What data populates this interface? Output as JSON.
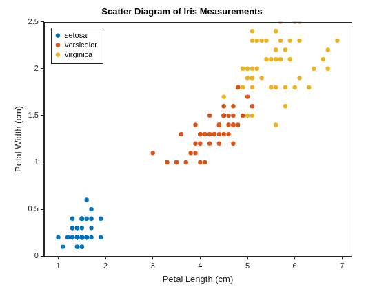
{
  "chart_data": {
    "type": "scatter",
    "title": "Scatter Diagram of Iris Measurements",
    "x_label": "Petal Length (cm)",
    "y_label": "Petal Width (cm)",
    "xlim": [
      0.7,
      7.2
    ],
    "ylim": [
      0,
      2.5
    ],
    "xticks": [
      1,
      2,
      3,
      4,
      5,
      6,
      7
    ],
    "yticks": [
      0,
      0.5,
      1,
      1.5,
      2,
      2.5
    ],
    "grid": false,
    "legend": "upper left",
    "marker": "circle",
    "series": [
      {
        "name": "setosa",
        "color": "#0072bd",
        "x": [
          1.4,
          1.4,
          1.3,
          1.5,
          1.4,
          1.7,
          1.4,
          1.5,
          1.4,
          1.5,
          1.5,
          1.6,
          1.4,
          1.1,
          1.2,
          1.5,
          1.3,
          1.4,
          1.7,
          1.5,
          1.7,
          1.5,
          1.0,
          1.7,
          1.9,
          1.6,
          1.6,
          1.5,
          1.4,
          1.6,
          1.6,
          1.5,
          1.5,
          1.4,
          1.5,
          1.2,
          1.3,
          1.4,
          1.3,
          1.5,
          1.3,
          1.3,
          1.3,
          1.6,
          1.9,
          1.4,
          1.6,
          1.4,
          1.5,
          1.4
        ],
        "values": [
          0.2,
          0.2,
          0.2,
          0.2,
          0.2,
          0.4,
          0.3,
          0.2,
          0.2,
          0.1,
          0.2,
          0.2,
          0.1,
          0.1,
          0.2,
          0.4,
          0.4,
          0.3,
          0.3,
          0.3,
          0.2,
          0.4,
          0.2,
          0.5,
          0.2,
          0.2,
          0.4,
          0.2,
          0.2,
          0.2,
          0.2,
          0.4,
          0.1,
          0.2,
          0.2,
          0.2,
          0.2,
          0.1,
          0.2,
          0.2,
          0.3,
          0.3,
          0.2,
          0.6,
          0.4,
          0.3,
          0.2,
          0.2,
          0.2,
          0.2
        ]
      },
      {
        "name": "versicolor",
        "color": "#d95319",
        "x": [
          4.7,
          4.5,
          4.9,
          4.0,
          4.6,
          4.5,
          4.7,
          3.3,
          4.6,
          3.9,
          3.5,
          4.2,
          4.0,
          4.7,
          3.6,
          4.4,
          4.5,
          4.1,
          4.5,
          3.9,
          4.8,
          4.0,
          4.9,
          4.7,
          4.3,
          4.4,
          4.8,
          5.0,
          4.5,
          3.5,
          3.8,
          3.7,
          3.9,
          5.1,
          4.5,
          4.5,
          4.7,
          4.4,
          4.1,
          4.0,
          4.4,
          4.6,
          4.0,
          3.3,
          4.2,
          4.2,
          4.2,
          4.3,
          3.0,
          4.1
        ],
        "values": [
          1.4,
          1.5,
          1.5,
          1.3,
          1.5,
          1.3,
          1.6,
          1.0,
          1.3,
          1.4,
          1.0,
          1.5,
          1.0,
          1.4,
          1.3,
          1.4,
          1.5,
          1.0,
          1.5,
          1.1,
          1.8,
          1.3,
          1.5,
          1.2,
          1.3,
          1.4,
          1.4,
          1.7,
          1.5,
          1.0,
          1.1,
          1.0,
          1.2,
          1.6,
          1.5,
          1.6,
          1.5,
          1.3,
          1.3,
          1.3,
          1.2,
          1.4,
          1.2,
          1.0,
          1.3,
          1.2,
          1.3,
          1.3,
          1.1,
          1.3
        ]
      },
      {
        "name": "virginica",
        "color": "#edb120",
        "x": [
          6.0,
          5.1,
          5.9,
          5.6,
          5.8,
          6.6,
          4.5,
          6.3,
          5.8,
          6.1,
          5.1,
          5.3,
          5.5,
          5.0,
          5.1,
          5.3,
          5.5,
          6.7,
          6.9,
          5.0,
          5.7,
          4.9,
          6.7,
          4.9,
          5.7,
          6.0,
          4.8,
          4.9,
          5.6,
          5.8,
          6.1,
          6.4,
          5.6,
          5.1,
          5.6,
          6.1,
          5.6,
          5.5,
          4.8,
          5.4,
          5.6,
          5.1,
          5.1,
          5.9,
          5.7,
          5.2,
          5.0,
          5.2,
          5.4,
          5.1
        ],
        "values": [
          2.5,
          1.9,
          2.1,
          1.8,
          2.2,
          2.1,
          1.7,
          1.8,
          1.8,
          2.5,
          2.0,
          1.9,
          2.1,
          2.0,
          2.4,
          2.3,
          1.8,
          2.2,
          2.3,
          1.5,
          2.3,
          2.0,
          2.0,
          1.8,
          2.1,
          1.8,
          1.8,
          1.8,
          2.1,
          1.6,
          1.9,
          2.0,
          2.2,
          1.5,
          1.4,
          2.3,
          2.4,
          1.8,
          1.8,
          2.1,
          2.4,
          2.3,
          1.9,
          2.3,
          2.5,
          2.3,
          1.9,
          2.0,
          2.3,
          1.8
        ]
      }
    ]
  }
}
